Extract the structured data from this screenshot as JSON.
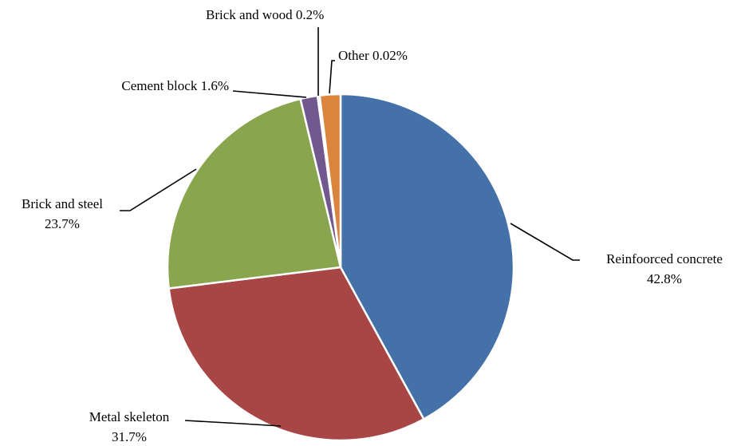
{
  "chart_data": {
    "type": "pie",
    "title": "",
    "legend": "none",
    "slices": [
      {
        "label": "Reinfoorced concrete",
        "value": 42.8,
        "value_label": "42.8%",
        "color": "#4472a8"
      },
      {
        "label": "Metal skeleton",
        "value": 31.7,
        "value_label": "31.7%",
        "color": "#a84645"
      },
      {
        "label": "Brick and steel",
        "value": 23.7,
        "value_label": "23.7%",
        "color": "#89a54e"
      },
      {
        "label": "Cement block",
        "value": 1.6,
        "value_label": "1.6%",
        "color": "#71598f"
      },
      {
        "label": "Brick and wood",
        "value": 0.2,
        "value_label": "0.2%",
        "color": "#4198af"
      },
      {
        "label": "Other",
        "value": 0.02,
        "value_label": "0.02%",
        "color": "#db843d"
      }
    ]
  }
}
